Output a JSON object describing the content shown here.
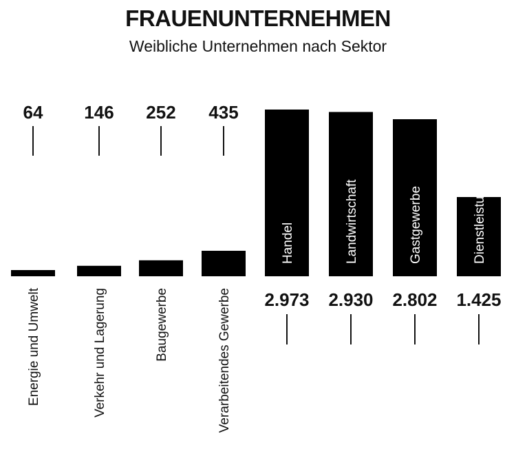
{
  "header": {
    "title": "FRAUENUNTERNEHMEN",
    "subtitle": "Weibliche Unternehmen nach Sektor"
  },
  "chart_data": {
    "type": "bar",
    "title": "FRAUENUNTERNEHMEN",
    "subtitle": "Weibliche Unternehmen nach Sektor",
    "categories": [
      "Energie und Umwelt",
      "Verkehr und Lagerung",
      "Baugewerbe",
      "Verarbeitendes Gewerbe",
      "Handel",
      "Landwirtschaft",
      "Gastgewerbe",
      "Dienstleistungen"
    ],
    "values": [
      64,
      146,
      252,
      435,
      2973,
      2930,
      2802,
      1425
    ],
    "value_labels": [
      "64",
      "146",
      "252",
      "435",
      "2.973",
      "2.930",
      "2.802",
      "1.425"
    ],
    "xlabel": "",
    "ylabel": "",
    "grid": false,
    "legend": "none",
    "colors": {
      "bar": "#000000",
      "text": "#111111",
      "label_on_bar": "#ffffff"
    }
  }
}
